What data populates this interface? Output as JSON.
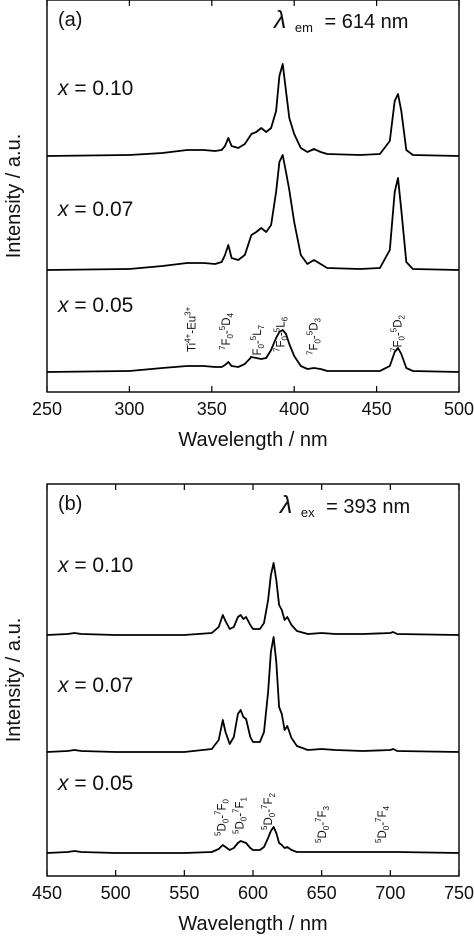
{
  "chart_data": [
    {
      "type": "line",
      "panel_label": "(a)",
      "condition": {
        "symbol": "λ",
        "subscript": "em",
        "value": "= 614 nm"
      },
      "xlabel": "Wavelength / nm",
      "ylabel": "Intensity / a.u.",
      "xlim": [
        250,
        500
      ],
      "x_ticks": [
        250,
        300,
        350,
        400,
        450,
        500
      ],
      "series": [
        {
          "name": "x = 0.10",
          "x": [
            250,
            300,
            320,
            335,
            345,
            352,
            356,
            358,
            360,
            362,
            366,
            370,
            374,
            377,
            380,
            383,
            386,
            389,
            391,
            393,
            395,
            397,
            400,
            404,
            408,
            412,
            416,
            420,
            440,
            452,
            458,
            461,
            463,
            465,
            468,
            472,
            500
          ],
          "y": [
            0.0,
            0.01,
            0.03,
            0.06,
            0.06,
            0.05,
            0.06,
            0.1,
            0.18,
            0.1,
            0.08,
            0.12,
            0.22,
            0.24,
            0.28,
            0.24,
            0.28,
            0.45,
            0.8,
            0.92,
            0.65,
            0.38,
            0.22,
            0.08,
            0.04,
            0.07,
            0.04,
            0.02,
            0.01,
            0.02,
            0.15,
            0.55,
            0.62,
            0.45,
            0.06,
            0.01,
            0.0
          ]
        },
        {
          "name": "x = 0.07",
          "x": [
            250,
            300,
            320,
            335,
            345,
            352,
            356,
            358,
            360,
            362,
            366,
            370,
            374,
            377,
            380,
            383,
            386,
            389,
            391,
            393,
            395,
            397,
            400,
            404,
            408,
            412,
            416,
            420,
            440,
            452,
            458,
            461,
            463,
            465,
            468,
            472,
            500
          ],
          "y": [
            0.0,
            0.01,
            0.04,
            0.07,
            0.07,
            0.06,
            0.08,
            0.15,
            0.25,
            0.12,
            0.1,
            0.15,
            0.35,
            0.38,
            0.42,
            0.38,
            0.45,
            0.78,
            1.08,
            1.15,
            0.98,
            0.8,
            0.48,
            0.15,
            0.06,
            0.1,
            0.06,
            0.02,
            0.01,
            0.02,
            0.2,
            0.78,
            0.92,
            0.6,
            0.08,
            0.01,
            0.0
          ]
        },
        {
          "name": "x = 0.05",
          "x": [
            250,
            300,
            320,
            335,
            345,
            352,
            356,
            358,
            360,
            362,
            366,
            370,
            374,
            377,
            380,
            383,
            386,
            389,
            391,
            393,
            395,
            397,
            400,
            404,
            408,
            412,
            416,
            420,
            440,
            452,
            458,
            461,
            463,
            465,
            468,
            472,
            500
          ],
          "y": [
            0.0,
            0.01,
            0.04,
            0.06,
            0.06,
            0.05,
            0.05,
            0.07,
            0.1,
            0.06,
            0.05,
            0.08,
            0.15,
            0.14,
            0.13,
            0.14,
            0.22,
            0.34,
            0.4,
            0.42,
            0.38,
            0.28,
            0.16,
            0.06,
            0.03,
            0.04,
            0.03,
            0.01,
            0.01,
            0.01,
            0.06,
            0.2,
            0.24,
            0.18,
            0.04,
            0.01,
            0.0
          ]
        }
      ],
      "annotations": [
        {
          "main": "Ti",
          "sup1": "4+",
          "mid": "-Eu",
          "sup2": "3+",
          "x": 340
        },
        {
          "a": "7",
          "b": "F",
          "s1": "0",
          "c": "-",
          "d": "5",
          "e": "D",
          "s2": "4",
          "x": 361
        },
        {
          "a": "7",
          "b": "F",
          "s1": "0",
          "c": "-",
          "d": "5",
          "e": "L",
          "s2": "7",
          "x": 380
        },
        {
          "a": "7",
          "b": "F",
          "s1": "0",
          "c": "-",
          "d": "5",
          "e": "L",
          "s2": "6",
          "x": 394
        },
        {
          "a": "7",
          "b": "F",
          "s1": "0",
          "c": "-",
          "d": "5",
          "e": "D",
          "s2": "3",
          "x": 414
        },
        {
          "a": "7",
          "b": "F",
          "s1": "0",
          "c": "-",
          "d": "5",
          "e": "D",
          "s2": "2",
          "x": 465
        }
      ]
    },
    {
      "type": "line",
      "panel_label": "(b)",
      "condition": {
        "symbol": "λ",
        "subscript": "ex",
        "value": "= 393 nm"
      },
      "xlabel": "Wavelength / nm",
      "ylabel": "Intensity / a.u.",
      "xlim": [
        450,
        750
      ],
      "x_ticks": [
        450,
        500,
        550,
        600,
        650,
        700,
        750
      ],
      "series": [
        {
          "name": "x = 0.10",
          "x": [
            450,
            465,
            470,
            475,
            500,
            550,
            570,
            575,
            578,
            580,
            583,
            586,
            589,
            591,
            593,
            595,
            598,
            600,
            605,
            608,
            611,
            613,
            615,
            617,
            619,
            621,
            623,
            625,
            628,
            632,
            640,
            650,
            660,
            680,
            700,
            702,
            705,
            750
          ],
          "y": [
            0.0,
            0.01,
            0.02,
            0.01,
            0.0,
            0.0,
            0.02,
            0.08,
            0.2,
            0.14,
            0.06,
            0.08,
            0.18,
            0.2,
            0.16,
            0.18,
            0.1,
            0.06,
            0.06,
            0.12,
            0.35,
            0.6,
            0.72,
            0.55,
            0.3,
            0.25,
            0.15,
            0.18,
            0.1,
            0.04,
            0.01,
            0.02,
            0.01,
            0.01,
            0.02,
            0.03,
            0.01,
            0.0
          ]
        },
        {
          "name": "x = 0.07",
          "x": [
            450,
            465,
            470,
            475,
            500,
            550,
            570,
            575,
            578,
            580,
            583,
            586,
            589,
            591,
            593,
            595,
            598,
            600,
            605,
            608,
            611,
            613,
            615,
            617,
            619,
            621,
            623,
            625,
            628,
            632,
            640,
            650,
            660,
            680,
            700,
            702,
            705,
            750
          ],
          "y": [
            0.0,
            0.01,
            0.02,
            0.01,
            0.0,
            0.0,
            0.03,
            0.12,
            0.32,
            0.2,
            0.08,
            0.15,
            0.38,
            0.42,
            0.35,
            0.33,
            0.15,
            0.1,
            0.1,
            0.2,
            0.6,
            1.0,
            1.15,
            0.9,
            0.45,
            0.38,
            0.22,
            0.26,
            0.14,
            0.06,
            0.02,
            0.03,
            0.02,
            0.01,
            0.02,
            0.03,
            0.01,
            0.0
          ]
        },
        {
          "name": "x = 0.05",
          "x": [
            450,
            465,
            470,
            475,
            500,
            550,
            570,
            575,
            578,
            580,
            583,
            586,
            589,
            591,
            593,
            595,
            598,
            600,
            605,
            608,
            611,
            613,
            615,
            617,
            619,
            621,
            623,
            625,
            628,
            632,
            640,
            650,
            660,
            680,
            700,
            702,
            705,
            750
          ],
          "y": [
            0.0,
            0.01,
            0.02,
            0.01,
            0.0,
            0.0,
            0.01,
            0.04,
            0.08,
            0.06,
            0.03,
            0.05,
            0.1,
            0.12,
            0.11,
            0.1,
            0.05,
            0.03,
            0.03,
            0.06,
            0.15,
            0.22,
            0.26,
            0.2,
            0.1,
            0.08,
            0.05,
            0.06,
            0.03,
            0.01,
            0.01,
            0.01,
            0.01,
            0.01,
            0.01,
            0.01,
            0.01,
            0.0
          ]
        }
      ],
      "annotations": [
        {
          "a": "5",
          "b": "D",
          "s1": "0",
          "c": "-",
          "d": "7",
          "e": "F",
          "s2": "0",
          "x": 580
        },
        {
          "a": "5",
          "b": "D",
          "s1": "0",
          "c": "-",
          "d": "7",
          "e": "F",
          "s2": "1",
          "x": 593
        },
        {
          "a": "5",
          "b": "D",
          "s1": "0",
          "c": "-",
          "d": "7",
          "e": "F",
          "s2": "2",
          "x": 614
        },
        {
          "a": "5",
          "b": "D",
          "s1": "0",
          "c": "-",
          "d": "7",
          "e": "F",
          "s2": "3",
          "x": 653
        },
        {
          "a": "5",
          "b": "D",
          "s1": "0",
          "c": "-",
          "d": "7",
          "e": "F",
          "s2": "4",
          "x": 697
        }
      ]
    }
  ]
}
